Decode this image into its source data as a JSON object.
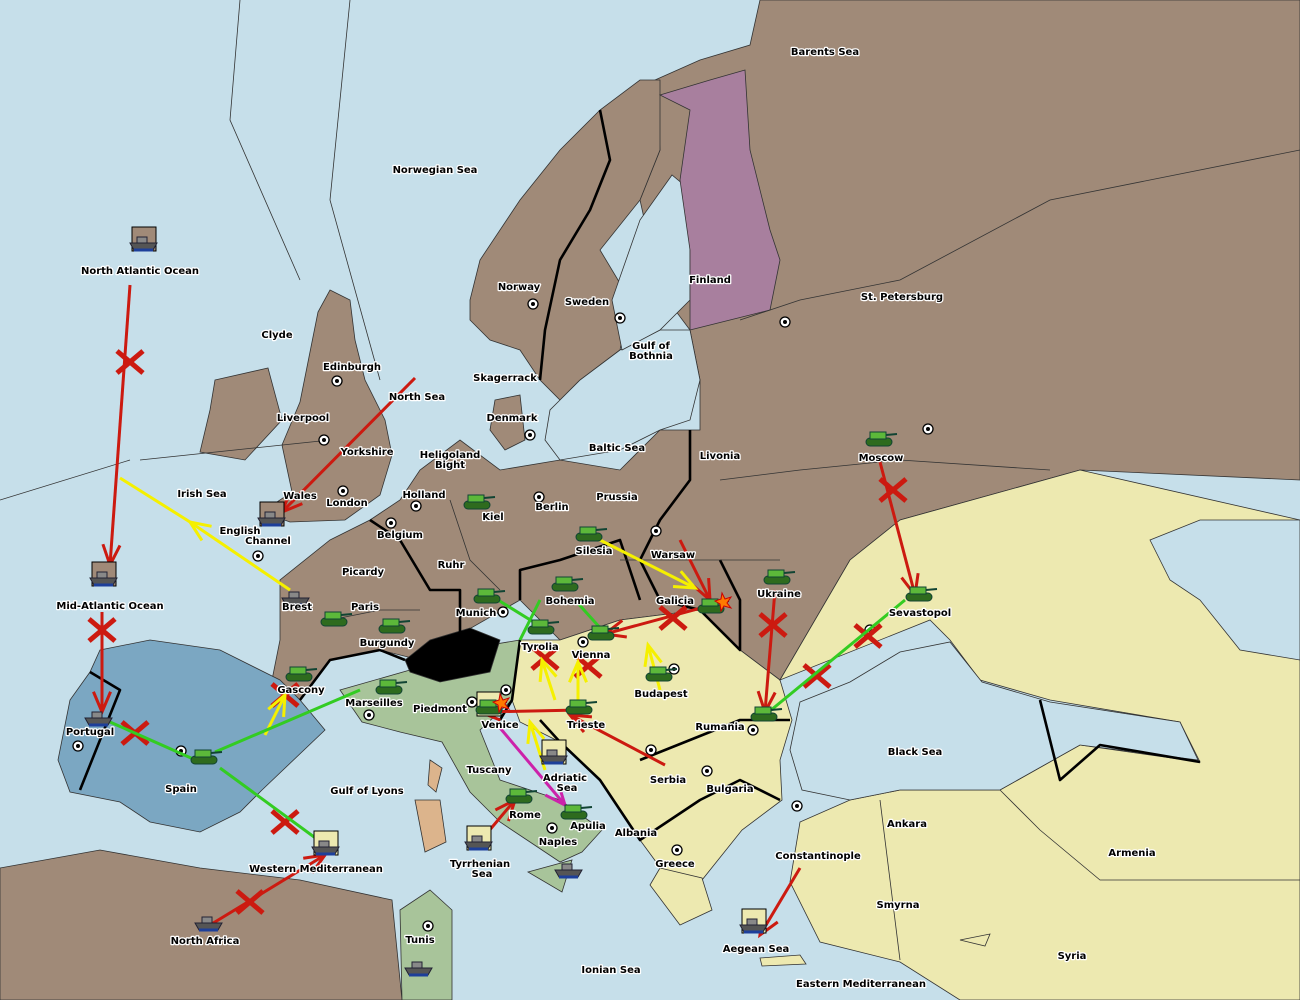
{
  "colors": {
    "sea": "#c6dfea",
    "land": "#a08a78",
    "england_spain": "#7ba7c2",
    "italy": "#a8c49a",
    "austria_turkey": "#ede9b0",
    "russia_finland": "#a87f9e",
    "switzerland": "#000000",
    "sardinia": "#dcb48c",
    "failed_order": "#cc1a10",
    "move_order": "#f5f000",
    "support_order": "#33cc22",
    "convoy_order": "#cc22aa"
  },
  "territories": [
    "Barents Sea",
    "Norwegian Sea",
    "North Atlantic Ocean",
    "Clyde",
    "Edinburgh",
    "Norway",
    "Sweden",
    "Finland",
    "St. Petersburg",
    "Gulf of",
    "Bothnia",
    "Skagerrack",
    "North Sea",
    "Liverpool",
    "Denmark",
    "Yorkshire",
    "Baltic Sea",
    "Livonia",
    "Moscow",
    "Heligoland",
    "Bight",
    "Irish Sea",
    "Wales",
    "Holland",
    "London",
    "Prussia",
    "Berlin",
    "Kiel",
    "English",
    "Channel",
    "Belgium",
    "Silesia",
    "Warsaw",
    "Ruhr",
    "Picardy",
    "Ukraine",
    "Galicia",
    "Bohemia",
    "Brest",
    "Mid-Atlantic Ocean",
    "Paris",
    "Sevastopol",
    "Munich",
    "Burgundy",
    "Tyrolia",
    "Vienna",
    "Gascony",
    "Budapest",
    "Marseilles",
    "Piedmont",
    "Venice",
    "Trieste",
    "Rumania",
    "Portugal",
    "Black Sea",
    "Tuscany",
    "Adriatic",
    "Sea",
    "Serbia",
    "Spain",
    "Bulgaria",
    "Gulf of Lyons",
    "Rome",
    "Ankara",
    "Apulia",
    "Albania",
    "Naples",
    "Armenia",
    "Constantinople",
    "Tyrrhenian",
    "Sea",
    "Greece",
    "Western Mediterranean",
    "Smyrna",
    "North Africa",
    "Tunis",
    "Aegean Sea",
    "Ionian Sea",
    "Eastern Mediterranean",
    "Syria"
  ],
  "units": [
    {
      "type": "army",
      "territory": "Kiel"
    },
    {
      "type": "army",
      "territory": "Silesia"
    },
    {
      "type": "army",
      "territory": "Moscow"
    },
    {
      "type": "army",
      "territory": "Ukraine"
    },
    {
      "type": "army",
      "territory": "Galicia",
      "status": "dislodged"
    },
    {
      "type": "army",
      "territory": "Bohemia"
    },
    {
      "type": "army",
      "territory": "Munich"
    },
    {
      "type": "army",
      "territory": "Tyrolia"
    },
    {
      "type": "army",
      "territory": "Vienna"
    },
    {
      "type": "army",
      "territory": "Budapest"
    },
    {
      "type": "army",
      "territory": "Sevastopol"
    },
    {
      "type": "army",
      "territory": "Paris"
    },
    {
      "type": "army",
      "territory": "Burgundy"
    },
    {
      "type": "army",
      "territory": "Gascony"
    },
    {
      "type": "army",
      "territory": "Marseilles"
    },
    {
      "type": "army",
      "territory": "Venice",
      "status": "dislodged"
    },
    {
      "type": "army",
      "territory": "Trieste"
    },
    {
      "type": "army",
      "territory": "Rumania"
    },
    {
      "type": "army",
      "territory": "Spain"
    },
    {
      "type": "army",
      "territory": "Rome"
    },
    {
      "type": "army",
      "territory": "Apulia"
    },
    {
      "type": "fleet",
      "territory": "North Atlantic Ocean"
    },
    {
      "type": "fleet",
      "territory": "Mid-Atlantic Ocean"
    },
    {
      "type": "fleet",
      "territory": "English Channel"
    },
    {
      "type": "fleet",
      "territory": "Brest"
    },
    {
      "type": "fleet",
      "territory": "Portugal"
    },
    {
      "type": "fleet",
      "territory": "Adriatic Sea"
    },
    {
      "type": "fleet",
      "territory": "Tyrrhenian Sea"
    },
    {
      "type": "fleet",
      "territory": "Naples"
    },
    {
      "type": "fleet",
      "territory": "Western Mediterranean"
    },
    {
      "type": "fleet",
      "territory": "North Africa"
    },
    {
      "type": "fleet",
      "territory": "Aegean Sea"
    },
    {
      "type": "fleet",
      "territory": "Tunis"
    }
  ]
}
